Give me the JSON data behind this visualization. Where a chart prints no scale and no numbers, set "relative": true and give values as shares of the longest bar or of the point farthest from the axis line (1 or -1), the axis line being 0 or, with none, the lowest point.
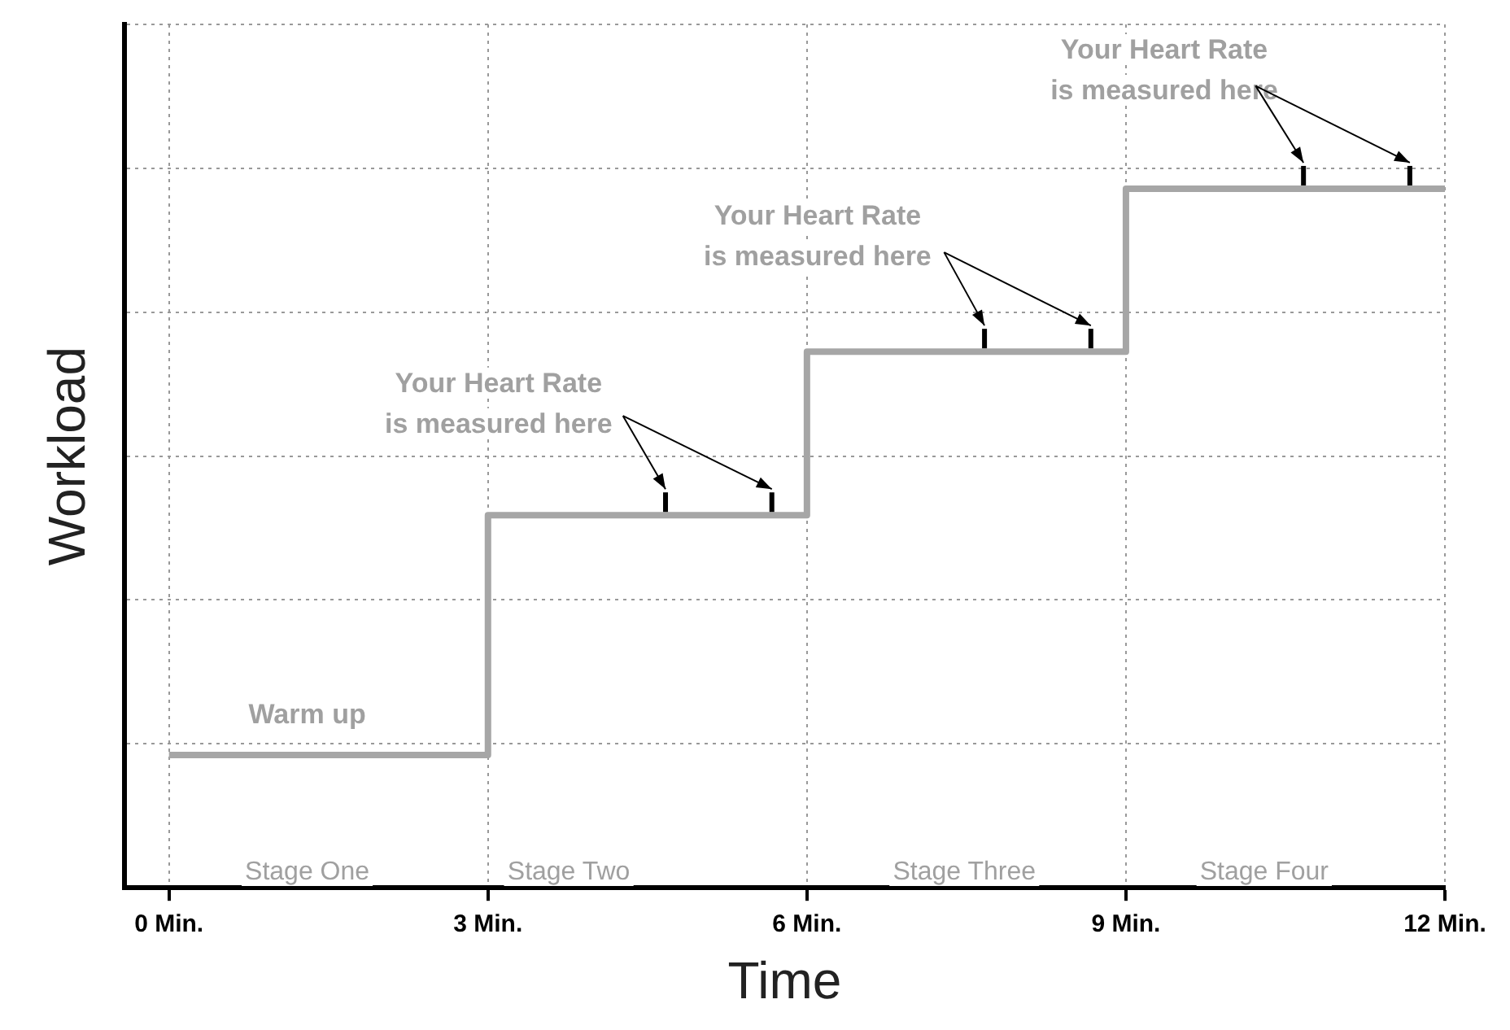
{
  "chart_data": {
    "type": "step",
    "xlabel": "Time",
    "ylabel": "Workload",
    "relative": true,
    "grid": true,
    "legend": false,
    "tick_labels": "x",
    "xlim": [
      -0.42,
      12
    ],
    "xticks": [
      {
        "value": 0,
        "label": "0 Min."
      },
      {
        "value": 3,
        "label": "3 Min."
      },
      {
        "value": 6,
        "label": "6 Min."
      },
      {
        "value": 9,
        "label": "9 Min."
      },
      {
        "value": 12,
        "label": "12 Min."
      }
    ],
    "series": [
      {
        "color": "#a6a6a6",
        "x": [
          0,
          3,
          6,
          9,
          12
        ],
        "values": [
          0.19,
          0.533,
          0.767,
          1,
          1
        ]
      }
    ],
    "annotations": [
      "Warm up",
      "Your Heart Rate\nis measured here",
      "Your Heart Rate\nis measured here",
      "Your Heart Rate\nis measured here",
      "Stage One",
      "Stage Two",
      "Stage Three",
      "Stage Four"
    ]
  }
}
